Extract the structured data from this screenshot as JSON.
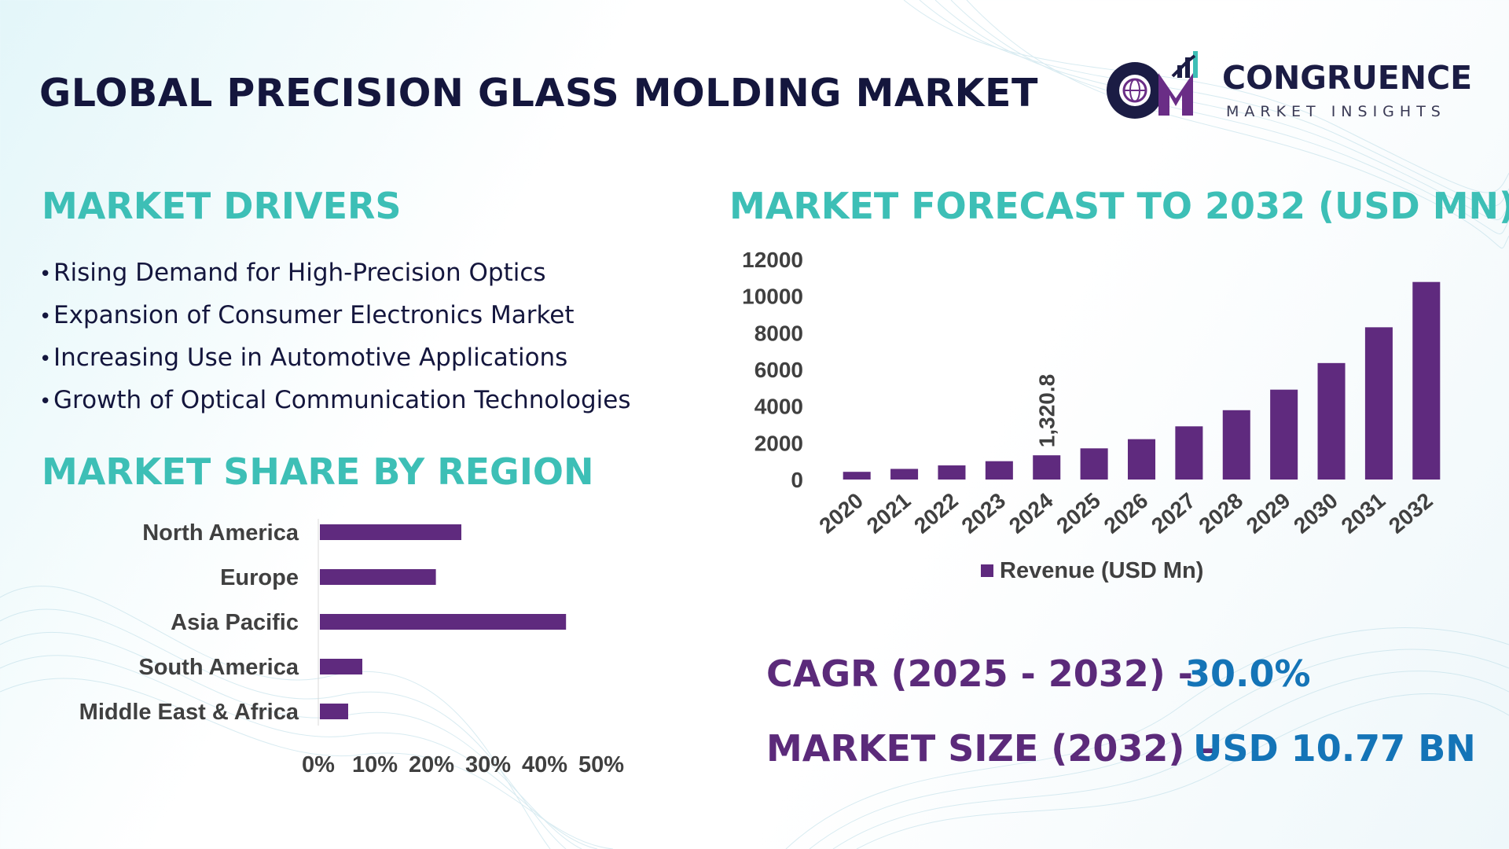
{
  "title": "GLOBAL PRECISION GLASS MOLDING MARKET",
  "logo": {
    "name": "CONGRUENCE",
    "tagline": "MARKET INSIGHTS",
    "mark_letters": "CM"
  },
  "colors": {
    "title": "#14163d",
    "section": "#3dbfb6",
    "bar": "#5f2a7e",
    "stat_label": "#5b2a7a",
    "stat_value": "#1474b7"
  },
  "drivers": {
    "title": "MARKET DRIVERS",
    "items": [
      "Rising Demand for High-Precision Optics",
      "Expansion of Consumer Electronics Market",
      "Increasing Use in Automotive Applications",
      "Growth of Optical Communication Technologies"
    ]
  },
  "region": {
    "title": "MARKET SHARE BY REGION"
  },
  "forecast": {
    "title": "MARKET FORECAST TO 2032 (USD MN)"
  },
  "stats": {
    "cagr_label": "CAGR (2025 - 2032) -",
    "cagr_value": "30.0%",
    "size_label": "MARKET SIZE (2032) –",
    "size_value": "USD 10.77 BN"
  },
  "chart_data": [
    {
      "type": "bar",
      "orientation": "vertical",
      "categories": [
        "2020",
        "2021",
        "2022",
        "2023",
        "2024",
        "2025",
        "2026",
        "2027",
        "2028",
        "2029",
        "2030",
        "2031",
        "2032"
      ],
      "series": [
        {
          "name": "Revenue (USD Mn)",
          "values": [
            420,
            580,
            770,
            1000,
            1320.8,
            1700,
            2200,
            2900,
            3780,
            4900,
            6350,
            8300,
            10770
          ]
        }
      ],
      "data_labels": [
        {
          "category": "2024",
          "text": "1,320.8"
        }
      ],
      "yticks": [
        "0",
        "2000",
        "4000",
        "6000",
        "8000",
        "10000",
        "12000"
      ],
      "ylim": [
        0,
        12000
      ],
      "legend": "bottom",
      "grid": false
    },
    {
      "type": "bar",
      "orientation": "horizontal",
      "categories": [
        "North America",
        "Europe",
        "Asia Pacific",
        "South America",
        "Middle East & Africa"
      ],
      "values": [
        25,
        20.5,
        43.5,
        7.5,
        5
      ],
      "xticks": [
        "0%",
        "10%",
        "20%",
        "30%",
        "40%",
        "50%"
      ],
      "xlim": [
        0,
        50
      ],
      "grid": false
    }
  ]
}
